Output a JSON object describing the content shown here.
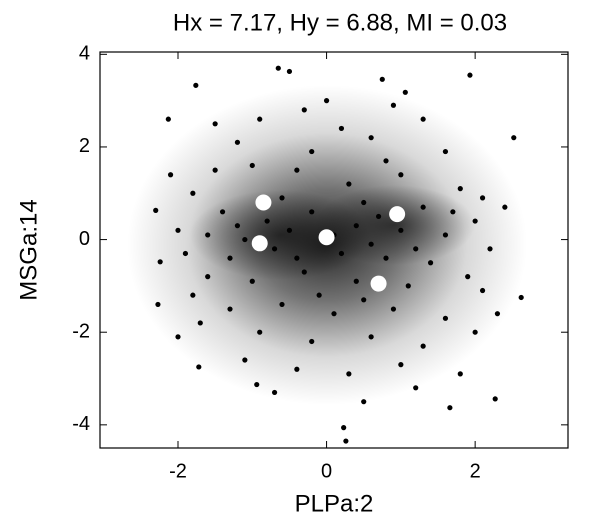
{
  "chart_data": {
    "type": "scatter",
    "title": "Hx = 7.17, Hy = 6.88, MI = 0.03",
    "x_label": "PLPa:2",
    "y_label": "MSGa:14",
    "xlim": [
      -3.05,
      3.25
    ],
    "ylim": [
      -4.5,
      4.05
    ],
    "xticks": [
      -2,
      0,
      2
    ],
    "yticks": [
      -4,
      -2,
      0,
      2,
      4
    ],
    "series": [
      {
        "color": "#000000",
        "x": [
          -0.5,
          1.93,
          0.75,
          1.06,
          -1.76,
          -0.65,
          0.23,
          0.26,
          2.27,
          1.66,
          2.52,
          2.62,
          -2.24,
          -2.3,
          -2.27,
          -2.13,
          -1.72,
          -0.94,
          -1.5,
          -1.2,
          -0.3,
          0.2,
          0.6,
          1.3,
          1.6,
          -1.0,
          -0.4,
          0.3,
          1.0,
          1.8,
          2.1,
          -1.8,
          -1.4,
          -0.6,
          0.5,
          1.3,
          2.0,
          -2.0,
          -1.6,
          -1.2,
          -0.5,
          0.4,
          1.0,
          1.6,
          2.2,
          -1.9,
          -1.3,
          -0.7,
          0.2,
          0.8,
          1.4,
          -1.6,
          -1.0,
          -0.3,
          0.4,
          1.1,
          1.9,
          -1.3,
          -0.6,
          0.1,
          0.9,
          1.6,
          -1.7,
          -0.9,
          -0.2,
          0.6,
          1.3,
          2.0,
          -1.1,
          -0.4,
          0.3,
          1.0,
          1.8,
          -0.7,
          0.5,
          1.2,
          -2.0,
          2.3,
          2.4,
          -2.1,
          -0.9,
          0.0,
          0.9,
          -0.2,
          0.8,
          -1.5,
          -0.8,
          -0.2,
          0.6,
          1.2,
          -1.1,
          0.1,
          -0.4,
          0.7,
          1.7,
          -1.8,
          2.1,
          -0.1,
          0.5
        ],
        "y": [
          3.63,
          3.55,
          3.46,
          3.18,
          3.33,
          3.7,
          -4.06,
          -4.35,
          -3.44,
          -3.63,
          2.2,
          -1.25,
          -0.48,
          0.63,
          -1.4,
          2.6,
          -2.75,
          -3.13,
          2.5,
          2.1,
          2.8,
          2.4,
          2.2,
          2.6,
          1.9,
          1.6,
          1.5,
          1.2,
          1.4,
          1.1,
          0.9,
          1.0,
          0.6,
          0.9,
          0.8,
          0.7,
          0.4,
          0.2,
          0.1,
          0.3,
          0.2,
          0.3,
          0.2,
          0.1,
          -0.2,
          -0.3,
          -0.4,
          -0.2,
          -0.3,
          -0.4,
          -0.5,
          -0.8,
          -0.9,
          -0.7,
          -0.9,
          -1.0,
          -0.8,
          -1.5,
          -1.4,
          -1.6,
          -1.5,
          -1.7,
          -1.8,
          -2.0,
          -2.2,
          -2.1,
          -2.3,
          -2.0,
          -2.6,
          -2.8,
          -2.9,
          -2.7,
          -2.9,
          -3.3,
          -3.5,
          -3.2,
          -2.1,
          -1.6,
          0.7,
          1.4,
          2.6,
          3.0,
          2.9,
          1.9,
          1.7,
          1.5,
          0.4,
          0.6,
          -0.1,
          -0.2,
          0.0,
          0.1,
          -0.4,
          0.5,
          0.6,
          -1.2,
          -1.1,
          -1.2,
          -1.3
        ]
      },
      {
        "color": "#ffffff",
        "x": [
          -0.85,
          0.95,
          -0.9,
          0.0,
          0.7
        ],
        "y": [
          0.8,
          0.55,
          -0.08,
          0.05,
          -0.95
        ]
      }
    ]
  }
}
